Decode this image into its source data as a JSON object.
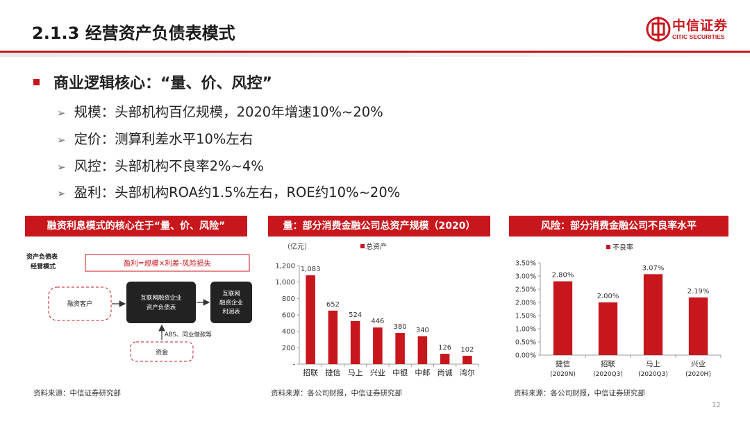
{
  "header": {
    "title": "2.1.3 经营资产负债表模式",
    "logo_cn": "中信证券",
    "logo_en": "CITIC SECURITIES"
  },
  "main": {
    "heading": "商业逻辑核心：“量、价、风控”",
    "points": [
      "规模：头部机构百亿规模，2020年增速10%~20%",
      "定价：测算利差水平10%左右",
      "风控：头部机构不良率2%~4%",
      "盈利：头部机构ROA约1.5%左右，ROE约10%~20%"
    ]
  },
  "diagram": {
    "header": "融资利息模式的核心在于“量、价、风险”",
    "side_label_1": "资产负债表",
    "side_label_2": "经营模式",
    "formula": "盈利=规模×利差-风险损失",
    "customer": "融资客户",
    "center_line_1": "互联网融资企业",
    "center_line_2": "资产负债表",
    "right_line_1": "互联网",
    "right_line_2": "融资企业",
    "right_line_3": "利润表",
    "funding_label": "ABS、同业借款等",
    "funds": "资金",
    "source": "资料来源：中信证券研究部"
  },
  "chart_assets": {
    "header": "量：部分消费金融公司总资产规模（2020）",
    "unit": "（亿元）",
    "legend": "总资产",
    "y_ticks": [
      "1,200",
      "1,000",
      "800",
      "600",
      "400",
      "200",
      "-"
    ],
    "value_labels": [
      "1,083",
      "652",
      "524",
      "446",
      "380",
      "340",
      "126",
      "102"
    ],
    "source": "资料来源：各公司财报，中信证券研究部"
  },
  "chart_npl": {
    "header": "风险：部分消费金融公司不良率水平",
    "legend": "不良率",
    "y_ticks": [
      "3.50%",
      "3.00%",
      "2.50%",
      "2.00%",
      "1.50%",
      "1.00%",
      "0.50%",
      "0.00%"
    ],
    "value_labels": [
      "2.80%",
      "2.00%",
      "3.07%",
      "2.19%"
    ],
    "x_sub": [
      "(2020N)",
      "(2020Q3)",
      "(2020Q3)",
      "(2020H)"
    ],
    "source": "资料来源：各公司财报，中信证券研究部"
  },
  "chart_data": [
    {
      "type": "bar",
      "categories": [
        "招联",
        "捷信",
        "马上",
        "兴业",
        "中银",
        "中邮",
        "尚诚",
        "湾尔"
      ],
      "series": [
        {
          "name": "总资产",
          "values": [
            1083,
            652,
            524,
            446,
            380,
            340,
            126,
            102
          ]
        }
      ],
      "ylim": [
        0,
        1200
      ],
      "legend_position": "top-left",
      "grid": false,
      "color": "#c8161d"
    },
    {
      "type": "bar",
      "categories": [
        "捷信",
        "招联",
        "马上",
        "兴业"
      ],
      "series": [
        {
          "name": "不良率",
          "values": [
            2.8,
            2.0,
            3.07,
            2.19
          ]
        }
      ],
      "ylim": [
        0,
        3.5
      ],
      "legend_position": "top-center",
      "grid": false,
      "color": "#c8161d"
    }
  ],
  "footer": {
    "page": "12"
  }
}
